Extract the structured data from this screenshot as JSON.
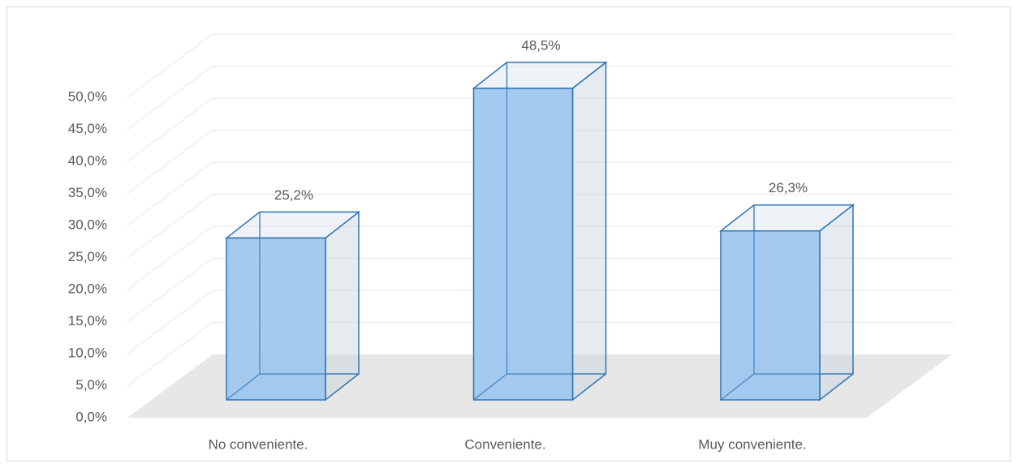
{
  "chart_data": {
    "type": "bar3d",
    "categories": [
      "No conveniente.",
      "Conveniente.",
      "Muy conveniente."
    ],
    "values": [
      25.2,
      48.5,
      26.3
    ],
    "value_labels": [
      "25,2%",
      "48,5%",
      "26,3%"
    ],
    "color": "#9fc7ef",
    "ylim": [
      0,
      50
    ],
    "yticks": [
      {
        "value": 0,
        "label": "0,0%"
      },
      {
        "value": 5,
        "label": "5,0%"
      },
      {
        "value": 10,
        "label": "10,0%"
      },
      {
        "value": 15,
        "label": "15,0%"
      },
      {
        "value": 20,
        "label": "20,0%"
      },
      {
        "value": 25,
        "label": "25,0%"
      },
      {
        "value": 30,
        "label": "30,0%"
      },
      {
        "value": 35,
        "label": "35,0%"
      },
      {
        "value": 40,
        "label": "40,0%"
      },
      {
        "value": 45,
        "label": "45,0%"
      },
      {
        "value": 50,
        "label": "50,0%"
      }
    ],
    "grid": true
  }
}
